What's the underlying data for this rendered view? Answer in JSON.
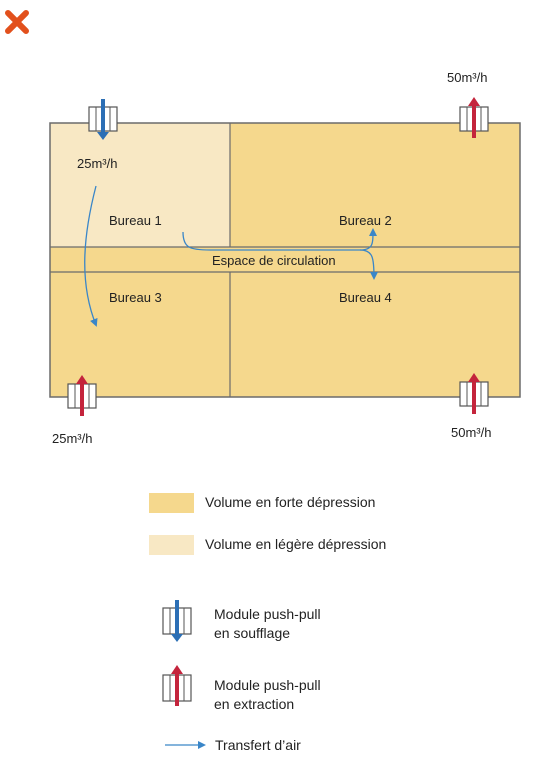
{
  "close_icon": "close-icon",
  "colors": {
    "strong": "#f5d88d",
    "light": "#f8e8c4",
    "wall": "#6b6b6b",
    "arrow": "#3a86c8",
    "supply": "#2c6fb5",
    "extract": "#c4243c"
  },
  "rooms": {
    "bureau1": "Bureau 1",
    "bureau2": "Bureau 2",
    "bureau3": "Bureau 3",
    "bureau4": "Bureau 4",
    "circulation": "Espace de circulation"
  },
  "flows": {
    "top_left": "25m³/h",
    "top_right": "50m³/h",
    "bottom_left": "25m³/h",
    "bottom_right": "50m³/h"
  },
  "legend": {
    "strong": "Volume en forte dépression",
    "light": "Volume en légère dépression",
    "supply_line1": "Module push-pull",
    "supply_line2": "en soufflage",
    "extract_line1": "Module push-pull",
    "extract_line2": "en extraction",
    "transfer": "Transfert d’air"
  }
}
